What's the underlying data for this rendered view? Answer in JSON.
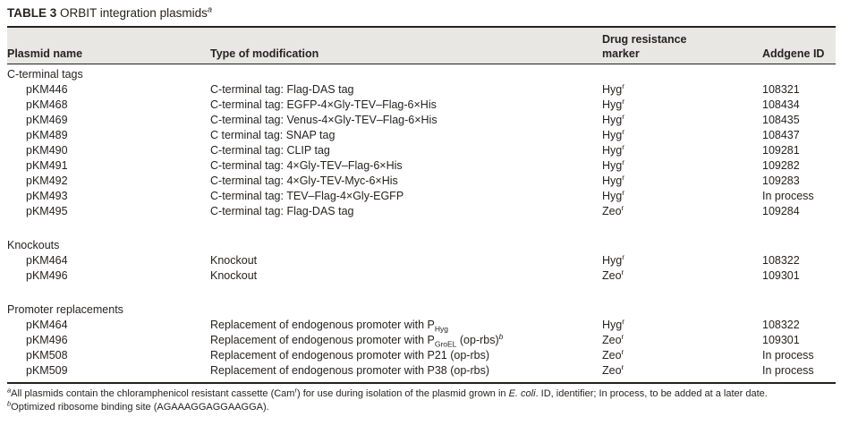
{
  "title": {
    "bold": "TABLE 3",
    "rest": " ORBIT integration plasmids",
    "sup": "a"
  },
  "columns": {
    "plasmid": "Plasmid name",
    "modification": "Type of modification",
    "marker_line1": "Drug resistance",
    "marker_line2": "marker",
    "addgene": "Addgene ID"
  },
  "sections": [
    {
      "label": "C-terminal tags",
      "rows": [
        {
          "name": "pKM446",
          "mod": "C-terminal tag: Flag-DAS tag",
          "marker": "Hyg",
          "marker_sup": "r",
          "addgene": "108321"
        },
        {
          "name": "pKM468",
          "mod": "C-terminal tag: EGFP-4×Gly-TEV–Flag-6×His",
          "marker": "Hyg",
          "marker_sup": "r",
          "addgene": "108434"
        },
        {
          "name": "pKM469",
          "mod": "C-terminal tag: Venus-4×Gly-TEV–Flag-6×His",
          "marker": "Hyg",
          "marker_sup": "r",
          "addgene": "108435"
        },
        {
          "name": "pKM489",
          "mod": "C terminal tag: SNAP tag",
          "marker": "Hyg",
          "marker_sup": "r",
          "addgene": "108437"
        },
        {
          "name": "pKM490",
          "mod": "C-terminal tag: CLIP tag",
          "marker": "Hyg",
          "marker_sup": "r",
          "addgene": "109281"
        },
        {
          "name": "pKM491",
          "mod": "C-terminal tag: 4×Gly-TEV–Flag-6×His",
          "marker": "Hyg",
          "marker_sup": "r",
          "addgene": "109282"
        },
        {
          "name": "pKM492",
          "mod": "C-terminal tag: 4×Gly-TEV-Myc-6×His",
          "marker": "Hyg",
          "marker_sup": "r",
          "addgene": "109283"
        },
        {
          "name": "pKM493",
          "mod": "C-terminal tag: TEV–Flag-4×Gly-EGFP",
          "marker": "Hyg",
          "marker_sup": "r",
          "addgene": "In process"
        },
        {
          "name": "pKM495",
          "mod": "C-terminal tag: Flag-DAS tag",
          "marker": "Zeo",
          "marker_sup": "r",
          "addgene": "109284"
        }
      ]
    },
    {
      "label": "Knockouts",
      "rows": [
        {
          "name": "pKM464",
          "mod": "Knockout",
          "marker": "Hyg",
          "marker_sup": "r",
          "addgene": "108322"
        },
        {
          "name": "pKM496",
          "mod": "Knockout",
          "marker": "Zeo",
          "marker_sup": "r",
          "addgene": "109301"
        }
      ]
    },
    {
      "label": "Promoter replacements",
      "rows": [
        {
          "name": "pKM464",
          "mod": "Replacement of endogenous promoter with P",
          "mod_sub": "Hyg",
          "marker": "Hyg",
          "marker_sup": "r",
          "addgene": "108322"
        },
        {
          "name": "pKM496",
          "mod": "Replacement of endogenous promoter with P",
          "mod_sub": "GroEL",
          "mod_after": " (op-rbs)",
          "mod_sup": "b",
          "marker": "Zeo",
          "marker_sup": "r",
          "addgene": "109301"
        },
        {
          "name": "pKM508",
          "mod": "Replacement of endogenous promoter with P21 (op-rbs)",
          "marker": "Zeo",
          "marker_sup": "r",
          "addgene": "In process"
        },
        {
          "name": "pKM509",
          "mod": "Replacement of endogenous promoter with P38 (op-rbs)",
          "marker": "Zeo",
          "marker_sup": "r",
          "addgene": "In process"
        }
      ]
    }
  ],
  "footnotes": {
    "a_mark": "a",
    "a_t1": "All plasmids contain the chloramphenicol resistant cassette (Cam",
    "a_sup_r": "r",
    "a_t2": ") for use during isolation of the plasmid grown in ",
    "a_italic": "E. coli",
    "a_t3": ". ID, identifier; In process, to be added at a later date.",
    "b_mark": "b",
    "b_text": "Optimized ribosome binding site (AGAAAGGAGGAAGGA)."
  },
  "colors": {
    "band": "#e8e7e4",
    "rule": "#24221f",
    "text": "#262321"
  }
}
